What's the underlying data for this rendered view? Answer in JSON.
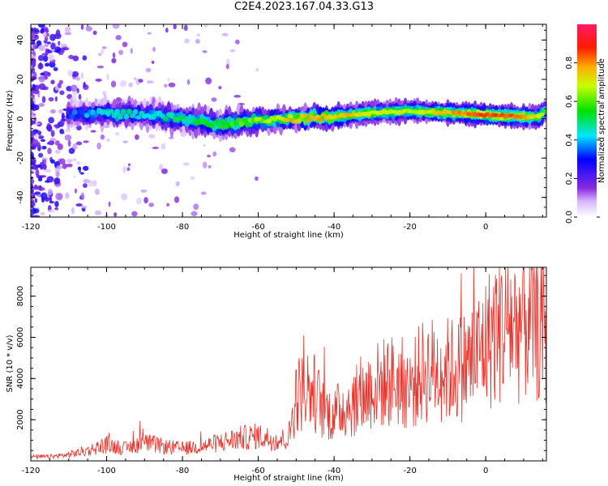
{
  "title": "C2E4.2023.167.04.33.G13",
  "chart_data": [
    {
      "type": "heatmap",
      "xlabel": "Height of straight line (km)",
      "ylabel": "Frequency (Hz)",
      "xlim": [
        -120,
        16
      ],
      "ylim": [
        -50,
        48
      ],
      "xticks": [
        -120,
        -100,
        -80,
        -60,
        -40,
        -20,
        0
      ],
      "yticks": [
        -40,
        -20,
        0,
        20,
        40
      ],
      "colorbar": {
        "label": "Normalized spectral amplitude",
        "range": [
          0,
          1
        ],
        "ticks": [
          "0.0",
          "0.2",
          "0.4",
          "0.6",
          "0.8"
        ]
      },
      "ridge": {
        "x": [
          -110,
          -100,
          -90,
          -80,
          -70,
          -60,
          -50,
          -40,
          -30,
          -20,
          -10,
          0,
          10,
          14,
          16
        ],
        "y": [
          2,
          3,
          2,
          0,
          -3,
          -1,
          0,
          1,
          3,
          4,
          3,
          2,
          1,
          1,
          5
        ],
        "peak_amplitude": [
          0.35,
          0.5,
          0.5,
          0.55,
          0.6,
          0.7,
          0.85,
          0.85,
          0.8,
          0.75,
          0.85,
          0.95,
          0.9,
          0.8,
          0.6
        ]
      }
    },
    {
      "type": "line",
      "xlabel": "Height of straight line (km)",
      "ylabel": "SNR (10 * v/v)",
      "xlim": [
        -120,
        16
      ],
      "ylim": [
        0,
        9400
      ],
      "xticks": [
        -120,
        -100,
        -80,
        -60,
        -40,
        -20,
        0
      ],
      "yticks": [
        2000,
        4000,
        6000,
        8000
      ],
      "series": [
        {
          "color": "#e8332b",
          "x": [
            -120,
            -115,
            -110,
            -105,
            -100,
            -95,
            -90,
            -85,
            -80,
            -75,
            -70,
            -65,
            -60,
            -55,
            -52,
            -50,
            -47,
            -45,
            -43,
            -40,
            -38,
            -35,
            -32,
            -30,
            -28,
            -25,
            -22,
            -20,
            -17,
            -15,
            -12,
            -10,
            -7,
            -5,
            -3,
            0,
            2,
            4,
            6,
            8,
            10,
            12,
            14,
            16
          ],
          "values": [
            200,
            200,
            300,
            500,
            800,
            600,
            900,
            700,
            600,
            700,
            900,
            1100,
            1200,
            1000,
            1100,
            3200,
            3500,
            3300,
            2500,
            2200,
            2600,
            2800,
            3200,
            3600,
            3700,
            3900,
            3800,
            3500,
            4300,
            4400,
            4500,
            4400,
            4500,
            4700,
            5000,
            5700,
            6200,
            6600,
            6800,
            6500,
            7000,
            6900,
            6800,
            6200
          ]
        }
      ]
    }
  ]
}
